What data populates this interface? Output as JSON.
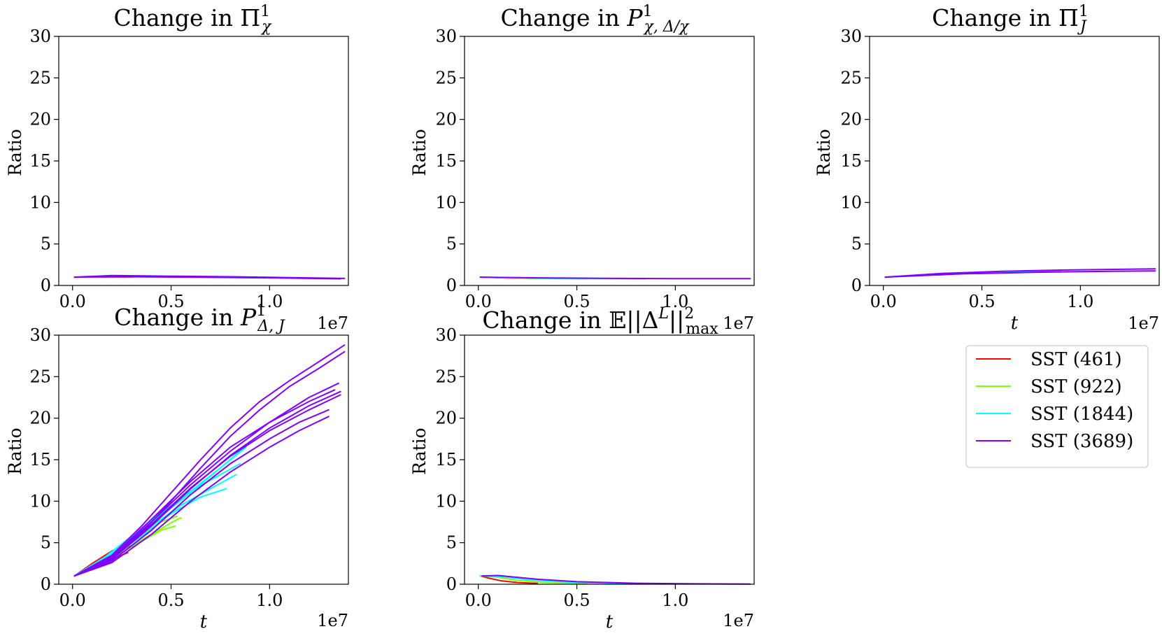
{
  "colors": {
    "SST (461)": "#ff0000",
    "SST (922)": "#80ff00",
    "SST (1844)": "#00ffff",
    "SST (3689)": "#8000ff"
  },
  "legend": {
    "placement": "right, second row",
    "entries": [
      "SST (461)",
      "SST (922)",
      "SST (1844)",
      "SST (3689)"
    ]
  },
  "chart_data": [
    {
      "type": "line",
      "title_prefix": "Change in ",
      "title_math": "Π",
      "title_sub": "χ",
      "title_sup": "1",
      "ylabel": "Ratio",
      "xlabel": "",
      "xlim": [
        -0.07,
        1.4
      ],
      "ylim": [
        0,
        30
      ],
      "xticks": [
        "0.0",
        "0.5",
        "1.0"
      ],
      "yticks": [
        "0",
        "5",
        "10",
        "15",
        "20",
        "25",
        "30"
      ],
      "offset_text": "1e7",
      "series": [
        {
          "name": "SST (461)",
          "x": [
            0.01,
            0.1,
            0.2,
            0.3
          ],
          "y": [
            1.0,
            1.02,
            1.03,
            1.02
          ]
        },
        {
          "name": "SST (922)",
          "x": [
            0.01,
            0.2,
            0.4,
            0.55
          ],
          "y": [
            1.0,
            1.05,
            1.04,
            1.02
          ]
        },
        {
          "name": "SST (1844)",
          "x": [
            0.01,
            0.2,
            0.5,
            0.85
          ],
          "y": [
            1.0,
            1.1,
            1.05,
            1.0
          ]
        },
        {
          "name": "SST (3689)",
          "x": [
            0.01,
            0.2,
            0.5,
            0.8,
            1.1,
            1.38
          ],
          "y": [
            1.0,
            1.2,
            1.12,
            1.05,
            0.95,
            0.85
          ]
        },
        {
          "name": "SST (3689)",
          "x": [
            0.01,
            0.25,
            0.6,
            1.0,
            1.36
          ],
          "y": [
            1.0,
            1.05,
            1.0,
            0.92,
            0.8
          ]
        }
      ]
    },
    {
      "type": "line",
      "title_prefix": "Change in ",
      "title_math": "P",
      "title_sub": "χ, Δ/χ",
      "title_sup": "1",
      "ylabel": "Ratio",
      "xlabel": "",
      "xlim": [
        -0.07,
        1.4
      ],
      "ylim": [
        0,
        30
      ],
      "xticks": [
        "0.0",
        "0.5",
        "1.0"
      ],
      "yticks": [
        "0",
        "5",
        "10",
        "15",
        "20",
        "25",
        "30"
      ],
      "offset_text": "1e7",
      "series": [
        {
          "name": "SST (461)",
          "x": [
            0.01,
            0.15,
            0.3
          ],
          "y": [
            1.0,
            0.9,
            0.85
          ]
        },
        {
          "name": "SST (922)",
          "x": [
            0.01,
            0.3,
            0.55
          ],
          "y": [
            1.0,
            0.85,
            0.8
          ]
        },
        {
          "name": "SST (1844)",
          "x": [
            0.01,
            0.4,
            0.85
          ],
          "y": [
            1.0,
            0.85,
            0.8
          ]
        },
        {
          "name": "SST (3689)",
          "x": [
            0.01,
            0.3,
            0.7,
            1.0,
            1.38
          ],
          "y": [
            1.0,
            0.92,
            0.85,
            0.83,
            0.82
          ]
        }
      ]
    },
    {
      "type": "line",
      "title_prefix": "Change in ",
      "title_math": "Π",
      "title_sub": "J",
      "title_sup": "1",
      "ylabel": "Ratio",
      "xlabel": "t",
      "xlim": [
        -0.07,
        1.4
      ],
      "ylim": [
        0,
        30
      ],
      "xticks": [
        "0.0",
        "0.5",
        "1.0"
      ],
      "yticks": [
        "0",
        "5",
        "10",
        "15",
        "20",
        "25",
        "30"
      ],
      "offset_text": "1e7",
      "series": [
        {
          "name": "SST (461)",
          "x": [
            0.01,
            0.15,
            0.3
          ],
          "y": [
            1.0,
            1.2,
            1.3
          ]
        },
        {
          "name": "SST (922)",
          "x": [
            0.01,
            0.3,
            0.55
          ],
          "y": [
            1.0,
            1.35,
            1.5
          ]
        },
        {
          "name": "SST (1844)",
          "x": [
            0.01,
            0.3,
            0.6,
            0.9
          ],
          "y": [
            1.0,
            1.4,
            1.6,
            1.7
          ]
        },
        {
          "name": "SST (3689)",
          "x": [
            0.01,
            0.3,
            0.6,
            0.9,
            1.2,
            1.38
          ],
          "y": [
            1.0,
            1.45,
            1.7,
            1.85,
            1.95,
            2.0
          ]
        },
        {
          "name": "SST (3689)",
          "x": [
            0.01,
            0.4,
            0.8,
            1.2,
            1.38
          ],
          "y": [
            1.0,
            1.4,
            1.6,
            1.72,
            1.75
          ]
        }
      ]
    },
    {
      "type": "line",
      "title_prefix": "Change in ",
      "title_math": "P",
      "title_sub": "Δ, J",
      "title_sup": "1",
      "ylabel": "Ratio",
      "xlabel": "t",
      "xlim": [
        -0.07,
        1.4
      ],
      "ylim": [
        0,
        30
      ],
      "xticks": [
        "0.0",
        "0.5",
        "1.0"
      ],
      "yticks": [
        "0",
        "5",
        "10",
        "15",
        "20",
        "25",
        "30"
      ],
      "offset_text": "1e7",
      "series": [
        {
          "name": "SST (461)",
          "x": [
            0.01,
            0.1,
            0.2,
            0.3
          ],
          "y": [
            1.0,
            2.5,
            4.0,
            5.2
          ]
        },
        {
          "name": "SST (461)",
          "x": [
            0.01,
            0.12,
            0.22,
            0.28
          ],
          "y": [
            1.0,
            2.0,
            3.2,
            3.8
          ]
        },
        {
          "name": "SST (461)",
          "x": [
            0.01,
            0.1,
            0.18,
            0.25
          ],
          "y": [
            1.0,
            2.2,
            3.5,
            4.3
          ]
        },
        {
          "name": "SST (461)",
          "x": [
            0.01,
            0.15,
            0.25,
            0.32
          ],
          "y": [
            1.0,
            2.8,
            4.2,
            4.8
          ]
        },
        {
          "name": "SST (922)",
          "x": [
            0.01,
            0.15,
            0.3,
            0.45,
            0.53
          ],
          "y": [
            1.0,
            3.0,
            5.2,
            7.5,
            8.2
          ]
        },
        {
          "name": "SST (922)",
          "x": [
            0.01,
            0.2,
            0.35,
            0.5,
            0.55
          ],
          "y": [
            1.0,
            3.5,
            5.8,
            8.5,
            9.2
          ]
        },
        {
          "name": "SST (922)",
          "x": [
            0.01,
            0.15,
            0.3,
            0.45,
            0.52
          ],
          "y": [
            1.0,
            2.5,
            4.5,
            6.5,
            7.0
          ]
        },
        {
          "name": "SST (922)",
          "x": [
            0.01,
            0.2,
            0.35,
            0.5,
            0.55
          ],
          "y": [
            1.0,
            3.3,
            5.3,
            7.4,
            8.0
          ]
        },
        {
          "name": "SST (1844)",
          "x": [
            0.01,
            0.15,
            0.3,
            0.45,
            0.6,
            0.75,
            0.85
          ],
          "y": [
            1.0,
            3.0,
            5.8,
            8.6,
            11.2,
            13.2,
            14.5
          ]
        },
        {
          "name": "SST (1844)",
          "x": [
            0.01,
            0.2,
            0.4,
            0.6,
            0.75,
            0.88
          ],
          "y": [
            1.0,
            3.8,
            7.5,
            11.2,
            14.0,
            16.5
          ]
        },
        {
          "name": "SST (1844)",
          "x": [
            0.01,
            0.2,
            0.35,
            0.5,
            0.65,
            0.78
          ],
          "y": [
            1.0,
            3.2,
            5.8,
            8.5,
            10.5,
            11.5
          ]
        },
        {
          "name": "SST (1844)",
          "x": [
            0.01,
            0.2,
            0.4,
            0.55,
            0.7,
            0.83
          ],
          "y": [
            1.0,
            3.7,
            7.0,
            9.5,
            11.5,
            13.2
          ]
        },
        {
          "name": "SST (1844)",
          "x": [
            0.01,
            0.25,
            0.45,
            0.65,
            0.8,
            0.9
          ],
          "y": [
            1.0,
            4.5,
            8.2,
            12.0,
            15.0,
            17.2
          ]
        },
        {
          "name": "SST (3689)",
          "x": [
            0.01,
            0.2,
            0.35,
            0.5,
            0.65,
            0.8,
            0.95,
            1.1,
            1.25,
            1.38
          ],
          "y": [
            1.0,
            3.5,
            7.0,
            11.0,
            15.0,
            18.8,
            22.0,
            24.5,
            26.8,
            28.8
          ]
        },
        {
          "name": "SST (3689)",
          "x": [
            0.01,
            0.2,
            0.35,
            0.5,
            0.65,
            0.8,
            0.95,
            1.1,
            1.25,
            1.38
          ],
          "y": [
            1.0,
            3.0,
            6.2,
            10.0,
            14.0,
            17.8,
            21.0,
            23.8,
            26.0,
            28.0
          ]
        },
        {
          "name": "SST (3689)",
          "x": [
            0.01,
            0.2,
            0.4,
            0.6,
            0.8,
            1.0,
            1.2,
            1.35
          ],
          "y": [
            1.0,
            3.2,
            7.5,
            12.0,
            16.0,
            19.5,
            22.5,
            24.2
          ]
        },
        {
          "name": "SST (3689)",
          "x": [
            0.01,
            0.2,
            0.4,
            0.6,
            0.8,
            1.0,
            1.2,
            1.36
          ],
          "y": [
            1.0,
            3.0,
            7.0,
            11.5,
            15.5,
            18.8,
            21.5,
            23.2
          ]
        },
        {
          "name": "SST (3689)",
          "x": [
            0.01,
            0.2,
            0.4,
            0.6,
            0.8,
            1.0,
            1.15,
            1.3
          ],
          "y": [
            1.0,
            2.8,
            6.5,
            10.8,
            14.5,
            17.5,
            19.5,
            21.0
          ]
        },
        {
          "name": "SST (3689)",
          "x": [
            0.01,
            0.2,
            0.4,
            0.6,
            0.8,
            1.0,
            1.15,
            1.3
          ],
          "y": [
            1.0,
            2.6,
            6.0,
            10.0,
            13.5,
            16.5,
            18.5,
            20.2
          ]
        },
        {
          "name": "SST (3689)",
          "x": [
            0.01,
            0.2,
            0.4,
            0.6,
            0.8,
            1.0,
            1.2,
            1.36
          ],
          "y": [
            1.0,
            3.1,
            7.2,
            11.6,
            15.4,
            18.5,
            21.0,
            22.8
          ]
        },
        {
          "name": "SST (3689)",
          "x": [
            0.01,
            0.2,
            0.4,
            0.6,
            0.8,
            1.0,
            1.2,
            1.33
          ],
          "y": [
            1.0,
            3.3,
            7.8,
            12.4,
            16.5,
            19.5,
            22.0,
            23.4
          ]
        }
      ]
    },
    {
      "type": "line",
      "title_prefix": "Change in ",
      "title_math": "𝔼||Δ",
      "title_sub": "max",
      "title_sup": "2",
      "title_sup_inner": "L",
      "title_tail": "||",
      "ylabel": "Ratio",
      "xlabel": "t",
      "xlim": [
        -0.07,
        1.4
      ],
      "ylim": [
        0,
        30
      ],
      "xticks": [
        "0.0",
        "0.5",
        "1.0"
      ],
      "yticks": [
        "0",
        "5",
        "10",
        "15",
        "20",
        "25",
        "30"
      ],
      "offset_text": "1e7",
      "series": [
        {
          "name": "SST (461)",
          "x": [
            0.01,
            0.05,
            0.12,
            0.2,
            0.3
          ],
          "y": [
            1.0,
            0.75,
            0.4,
            0.2,
            0.1
          ]
        },
        {
          "name": "SST (922)",
          "x": [
            0.01,
            0.08,
            0.2,
            0.35,
            0.55
          ],
          "y": [
            1.0,
            0.9,
            0.45,
            0.2,
            0.1
          ]
        },
        {
          "name": "SST (1844)",
          "x": [
            0.01,
            0.1,
            0.25,
            0.5,
            0.85
          ],
          "y": [
            1.0,
            0.95,
            0.55,
            0.2,
            0.05
          ]
        },
        {
          "name": "SST (3689)",
          "x": [
            0.02,
            0.1,
            0.3,
            0.5,
            0.8,
            1.1,
            1.38
          ],
          "y": [
            1.0,
            1.05,
            0.6,
            0.3,
            0.12,
            0.05,
            0.02
          ]
        }
      ]
    }
  ]
}
